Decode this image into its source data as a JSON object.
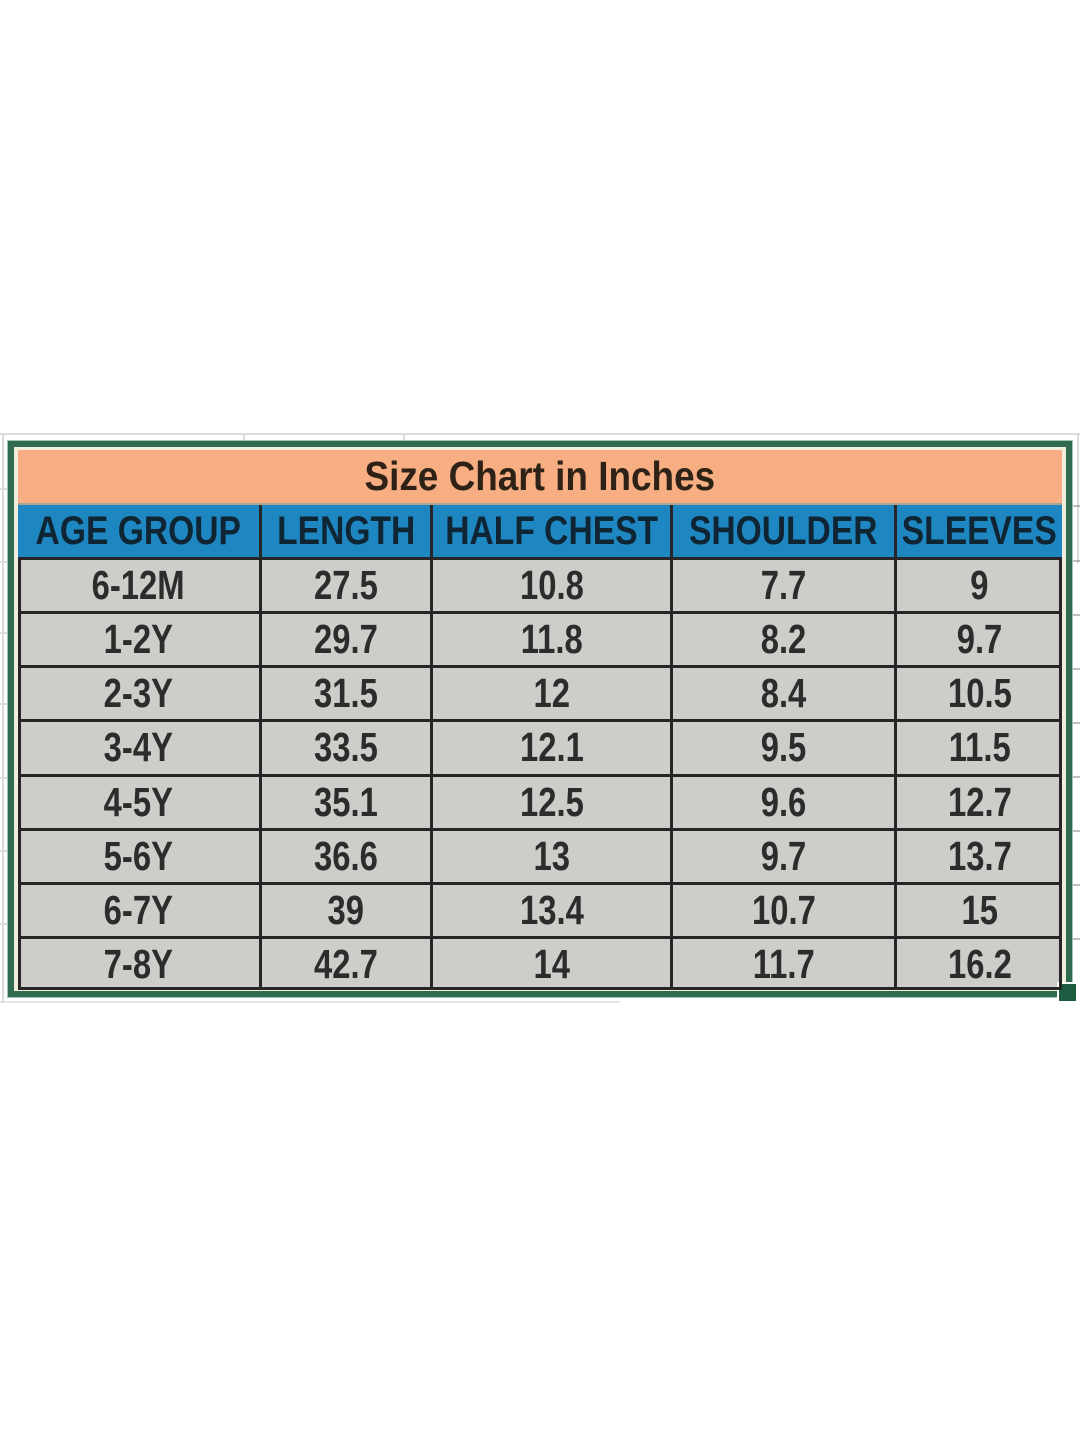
{
  "table": {
    "title": "Size Chart in Inches",
    "columns": [
      "AGE GROUP",
      "LENGTH",
      "HALF CHEST",
      "SHOULDER",
      "SLEEVES"
    ],
    "rows": [
      [
        "6-12M",
        "27.5",
        "10.8",
        "7.7",
        "9"
      ],
      [
        "1-2Y",
        "29.7",
        "11.8",
        "8.2",
        "9.7"
      ],
      [
        "2-3Y",
        "31.5",
        "12",
        "8.4",
        "10.5"
      ],
      [
        "3-4Y",
        "33.5",
        "12.1",
        "9.5",
        "11.5"
      ],
      [
        "4-5Y",
        "35.1",
        "12.5",
        "9.6",
        "12.7"
      ],
      [
        "5-6Y",
        "36.6",
        "13",
        "9.7",
        "13.7"
      ],
      [
        "6-7Y",
        "39",
        "13.4",
        "10.7",
        "15"
      ],
      [
        "7-8Y",
        "42.7",
        "14",
        "11.7",
        "16.2"
      ]
    ],
    "colors": {
      "title_bg": "#f6ae82",
      "header_bg": "#1e86c0",
      "row_bg": "#cecdca",
      "grid_line": "#262626",
      "selection_border": "#2f6b4e",
      "fill_handle": "#1d5c40",
      "sheet_gridline": "#d9dcd9"
    }
  }
}
